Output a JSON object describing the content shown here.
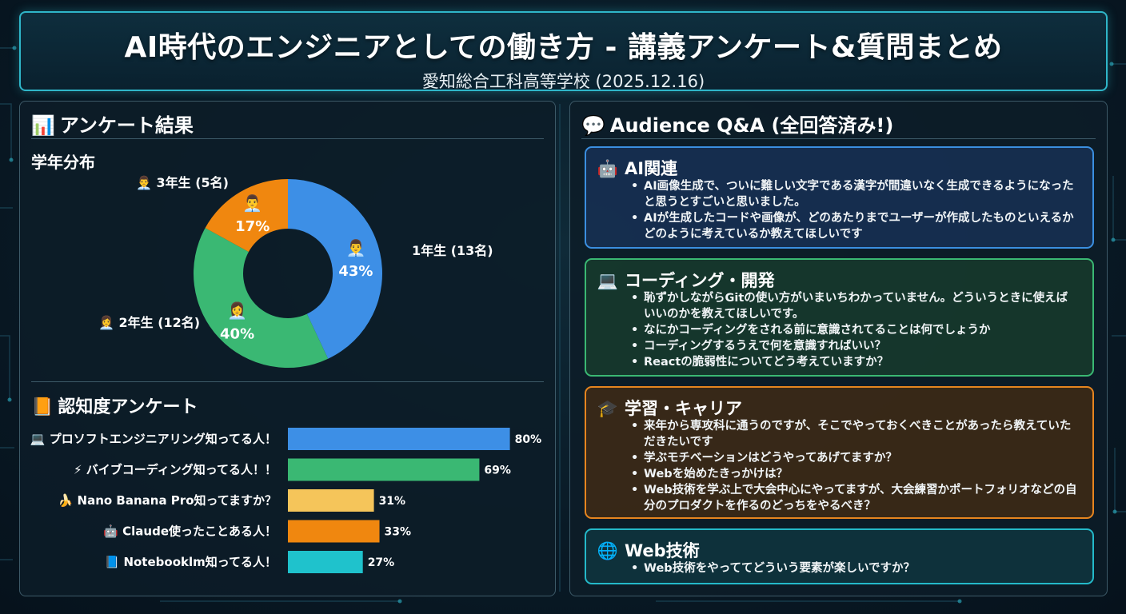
{
  "header": {
    "title": "AI時代のエンジニアとしての働き方 - 講義アンケート&質問まとめ",
    "subtitle": "愛知総合工科高等学校 (2025.12.16)"
  },
  "survey": {
    "panel_title": "アンケート結果",
    "panel_icon": "📊",
    "grade_title": "学年分布",
    "awareness_title": "認知度アンケート",
    "awareness_icon": "📙"
  },
  "chart_data": [
    {
      "type": "pie",
      "title": "学年分布",
      "slices": [
        {
          "label": "1年生 (13名)",
          "value": 43,
          "pct_label": "43%",
          "color": "#3d8fe6",
          "icon": "👨‍💼"
        },
        {
          "label": "2年生 (12名)",
          "value": 40,
          "pct_label": "40%",
          "color": "#3ab873",
          "icon": "👩‍💼"
        },
        {
          "label": "3年生 (5名)",
          "value": 17,
          "pct_label": "17%",
          "color": "#f0870f",
          "icon": "👨‍💼"
        }
      ]
    },
    {
      "type": "bar",
      "orientation": "horizontal",
      "title": "認知度アンケート",
      "categories": [
        "💻 プロソフトエンジニアリング知ってる人！",
        "⚡ バイブコーディング知ってる人！！",
        "🍌 Nano Banana Pro知ってますか？",
        "🤖 Claude使ったことある人！",
        "📘 Notebooklm知ってる人！"
      ],
      "values": [
        80,
        69,
        31,
        33,
        27
      ],
      "value_labels": [
        "80%",
        "69%",
        "31%",
        "33%",
        "27%"
      ],
      "colors": [
        "#3d8fe6",
        "#3ab873",
        "#f5c55a",
        "#f0870f",
        "#1fc2cc"
      ],
      "xlim": [
        0,
        100
      ]
    }
  ],
  "qa": {
    "panel_title": "Audience Q&A (全回答済み!)",
    "panel_icon": "💬",
    "categories": [
      {
        "title": "AI関連",
        "icon": "🤖",
        "items": [
          "AI画像生成で、ついに難しい文字である漢字が間違いなく生成できるようになったと思うとすごいと思いました。",
          "AIが生成したコードや画像が、どのあたりまでユーザーが作成したものといえるかどのように考えているか教えてほしいです"
        ]
      },
      {
        "title": "コーディング・開発",
        "icon": "💻",
        "items": [
          "恥ずかしながらGitの使い方がいまいちわかっていません。どういうときに使えばいいのかを教えてほしいです。",
          "なにかコーディングをされる前に意識されてることは何でしょうか",
          "コーディングするうえで何を意識すればいい？",
          "Reactの脆弱性についてどう考えていますか？"
        ]
      },
      {
        "title": "学習・キャリア",
        "icon": "🎓",
        "items": [
          "来年から専攻科に通うのですが、そこでやっておくべきことがあったら教えていただきたいです",
          "学ぶモチベーションはどうやってあげてますか？",
          "Webを始めたきっかけは？",
          "Web技術を学ぶ上で大会中心にやってますが、大会練習かポートフォリオなどの自分のプロダクトを作るのどっちをやるべき？"
        ]
      },
      {
        "title": "Web技術",
        "icon": "🌐",
        "items": [
          "Web技術をやっててどういう要素が楽しいですか？"
        ]
      }
    ]
  }
}
